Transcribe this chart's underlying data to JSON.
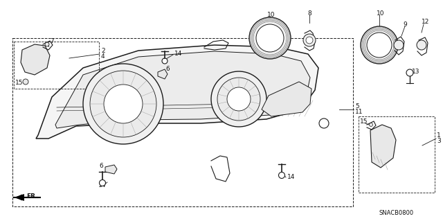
{
  "bg_color": "#ffffff",
  "diagram_code": "SNACB0800",
  "line_color": "#1a1a1a",
  "text_color": "#111111",
  "hatch_color": "#999999",
  "fill_light": "#f5f5f5",
  "fill_mid": "#e8e8e8"
}
